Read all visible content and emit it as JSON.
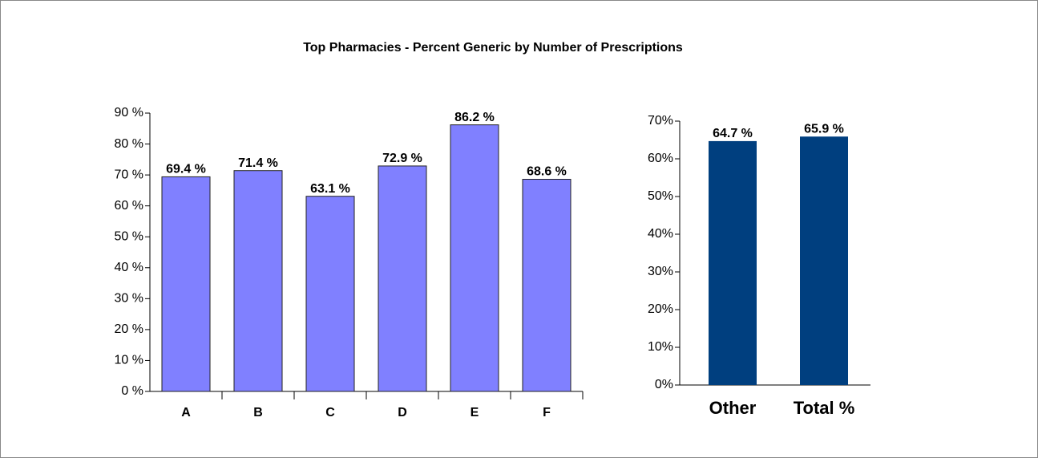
{
  "title": "Top Pharmacies - Percent Generic by Number of Prescriptions",
  "chart_data": [
    {
      "type": "bar",
      "categories": [
        "A",
        "B",
        "C",
        "D",
        "E",
        "F"
      ],
      "values": [
        69.4,
        71.4,
        63.1,
        72.9,
        86.2,
        68.6
      ],
      "value_labels": [
        "69.4 %",
        "71.4 %",
        "63.1 %",
        "72.9 %",
        "86.2 %",
        "68.6 %"
      ],
      "color": "#8080ff",
      "ylim": [
        0,
        90
      ],
      "yticks": [
        {
          "value": 0,
          "label": "0 %"
        },
        {
          "value": 10,
          "label": "10 %"
        },
        {
          "value": 20,
          "label": "20 %"
        },
        {
          "value": 30,
          "label": "30 %"
        },
        {
          "value": 40,
          "label": "40 %"
        },
        {
          "value": 50,
          "label": "50 %"
        },
        {
          "value": 60,
          "label": "60 %"
        },
        {
          "value": 70,
          "label": "70 %"
        },
        {
          "value": 80,
          "label": "80 %"
        },
        {
          "value": 90,
          "label": "90 %"
        }
      ]
    },
    {
      "type": "bar",
      "categories": [
        "Other",
        "Total %"
      ],
      "values": [
        64.7,
        65.9
      ],
      "value_labels": [
        "64.7 %",
        "65.9 %"
      ],
      "color": "#003f7f",
      "ylim": [
        0,
        70
      ],
      "yticks": [
        {
          "value": 0,
          "label": "0%"
        },
        {
          "value": 10,
          "label": "10%"
        },
        {
          "value": 20,
          "label": "20%"
        },
        {
          "value": 30,
          "label": "30%"
        },
        {
          "value": 40,
          "label": "40%"
        },
        {
          "value": 50,
          "label": "50%"
        },
        {
          "value": 60,
          "label": "60%"
        },
        {
          "value": 70,
          "label": "70%"
        }
      ]
    }
  ]
}
